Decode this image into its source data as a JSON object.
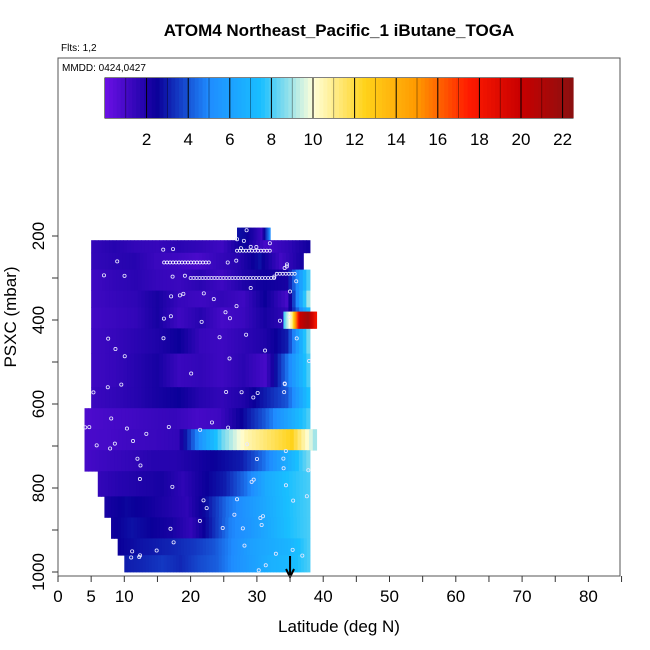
{
  "chart_data": {
    "type": "heatmap",
    "title": "ATOM4 Northeast_Pacific_1 iButane_TOGA",
    "flights_label": "Flts: 1,2",
    "dates_label": "MMDD: 0424,0427",
    "xlabel": "Latitude (deg N)",
    "ylabel": "PSXC (mbar)",
    "xlim": [
      0,
      85
    ],
    "ylim": [
      1000,
      100
    ],
    "x_ticks": [
      0,
      5,
      10,
      20,
      30,
      40,
      50,
      60,
      70,
      80
    ],
    "y_ticks": [
      200,
      400,
      600,
      800,
      1000
    ],
    "colorbar": {
      "range": [
        0,
        22.5
      ],
      "ticks": [
        2,
        4,
        6,
        8,
        10,
        12,
        14,
        16,
        18,
        20,
        22
      ],
      "colors": [
        "#6c10e6",
        "#0b0099",
        "#1f8cff",
        "#19bfff",
        "#ffffd9",
        "#ffd21a",
        "#ff9900",
        "#ff1a00",
        "#c80000",
        "#8a1010"
      ]
    },
    "arrow_latitude": 35,
    "rows": [
      {
        "p": [
          180,
          210
        ],
        "x": [
          27,
          32
        ],
        "values": [
          2.8,
          2.6,
          2.0,
          1.2,
          5.0
        ]
      },
      {
        "p": [
          210,
          240
        ],
        "x": [
          5,
          38
        ],
        "values": [
          1.5,
          1.8,
          1.5,
          1.4,
          1.7,
          1.5,
          1.2,
          2.6,
          1.0,
          1.5,
          2.3
        ]
      },
      {
        "p": [
          240,
          280
        ],
        "x": [
          5,
          37
        ],
        "values": [
          1.5,
          1.7,
          1.8,
          1.3,
          1.2,
          0.9,
          1.4,
          1.8,
          2.8,
          1.1,
          2.2
        ]
      },
      {
        "p": [
          280,
          330
        ],
        "x": [
          5,
          38
        ],
        "values": [
          1.2,
          1.5,
          1.7,
          1.4,
          1.3,
          1.7,
          1.2,
          2.0,
          2.4,
          2.2,
          8.0
        ]
      },
      {
        "p": [
          330,
          370
        ],
        "x": [
          5,
          38
        ],
        "values": [
          1.2,
          1.4,
          1.6,
          2.2,
          1.4,
          1.2,
          1.5,
          1.2,
          2.5,
          1.0,
          9.0
        ]
      },
      {
        "p": [
          370,
          420
        ],
        "x": [
          5,
          38
        ],
        "values": [
          1.1,
          1.3,
          1.5,
          2.2,
          1.2,
          1.8,
          1.0,
          1.3,
          2.2,
          1.5,
          7.0
        ]
      },
      {
        "p": [
          420,
          480
        ],
        "x": [
          5,
          38
        ],
        "values": [
          1.2,
          1.4,
          1.7,
          2.0,
          2.5,
          1.4,
          1.2,
          1.6,
          2.0,
          3.0,
          8.5
        ]
      },
      {
        "p": [
          480,
          560
        ],
        "x": [
          5,
          38
        ],
        "values": [
          1.2,
          1.4,
          1.8,
          2.2,
          1.3,
          1.5,
          1.2,
          1.7,
          1.0,
          4.5,
          8.0
        ]
      },
      {
        "p": [
          560,
          610
        ],
        "x": [
          5,
          38
        ],
        "values": [
          1.3,
          1.5,
          1.8,
          2.2,
          2.5,
          1.8,
          1.5,
          2.0,
          3.0,
          4.0,
          7.5
        ]
      },
      {
        "p": [
          610,
          660
        ],
        "x": [
          4,
          38
        ],
        "values": [
          0.8,
          1.0,
          1.1,
          1.3,
          1.4,
          1.0,
          1.2,
          2.5,
          4.0,
          6.0,
          8.0
        ]
      },
      {
        "p": [
          660,
          710
        ],
        "x": [
          4,
          39
        ],
        "values": [
          0.9,
          1.0,
          1.2,
          1.3,
          1.5,
          5.5,
          8.5,
          10.5,
          11.5,
          12.5,
          9.0
        ]
      },
      {
        "p": [
          710,
          760
        ],
        "x": [
          4,
          38
        ],
        "values": [
          1.0,
          1.3,
          1.5,
          1.8,
          1.8,
          2.2,
          2.6,
          3.0,
          4.5,
          6.5,
          8.5
        ]
      },
      {
        "p": [
          760,
          820
        ],
        "x": [
          6,
          38
        ],
        "values": [
          1.5,
          1.8,
          2.0,
          2.2,
          1.6,
          2.4,
          3.0,
          4.5,
          6.5,
          7.5,
          8.0
        ]
      },
      {
        "p": [
          820,
          870
        ],
        "x": [
          7,
          38
        ],
        "values": [
          2.2,
          2.6,
          2.4,
          2.0,
          1.6,
          2.8,
          4.5,
          5.5,
          6.5,
          7.5,
          8.0
        ]
      },
      {
        "p": [
          870,
          920
        ],
        "x": [
          8,
          38
        ],
        "values": [
          2.4,
          2.8,
          2.5,
          2.2,
          1.5,
          3.0,
          4.8,
          5.5,
          6.5,
          7.5,
          8.0
        ]
      },
      {
        "p": [
          920,
          960
        ],
        "x": [
          9,
          38
        ],
        "values": [
          2.5,
          2.8,
          3.0,
          3.2,
          3.5,
          4.0,
          5.0,
          6.0,
          6.5,
          7.0,
          8.0
        ]
      },
      {
        "p": [
          960,
          1000
        ],
        "x": [
          10,
          38
        ],
        "values": [
          3.0,
          3.2,
          3.5,
          3.2,
          3.8,
          4.2,
          5.2,
          6.0,
          6.8,
          7.2,
          8.0
        ]
      }
    ],
    "hotspot": {
      "p": [
        380,
        420
      ],
      "x": [
        34,
        39
      ],
      "values": [
        8.0,
        11.0,
        20.0,
        21.5,
        18.0
      ]
    }
  }
}
